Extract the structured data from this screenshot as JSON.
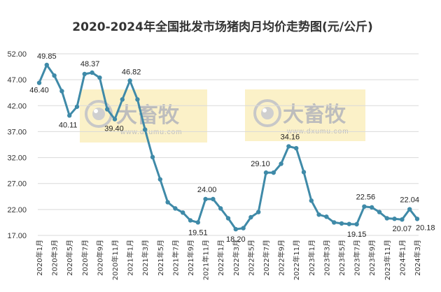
{
  "chart_data": {
    "type": "line",
    "title": "2020-2024年全国批发市场猪肉月均价走势图(元/公斤)",
    "xlabel": "",
    "ylabel": "",
    "ylim": [
      17,
      52
    ],
    "yticks": [
      "52.00",
      "47.00",
      "42.00",
      "37.00",
      "32.00",
      "27.00",
      "22.00",
      "17.00"
    ],
    "grid": true,
    "legend": "none",
    "colors": {
      "line": "#3f8aa8",
      "marker": "#3f8aa8",
      "grid": "#d9d9d9",
      "watermark_bg": "#fbf1c8"
    },
    "x_tick_labels": [
      "2020年1月",
      "2020年3月",
      "2020年5月",
      "2020年7月",
      "2020年9月",
      "2020年11月",
      "2021年1月",
      "2021年3月",
      "2021年5月",
      "2021年7月",
      "2021年9月",
      "2021年11月",
      "2022年1月",
      "2022年3月",
      "2022年5月",
      "2022年7月",
      "2022年9月",
      "2022年11月",
      "2023年1月",
      "2023年3月",
      "2023年5月",
      "2023年7月",
      "2023年9月",
      "2023年11月",
      "2024年1月",
      "2024年3月"
    ],
    "series": [
      {
        "values": [
          46.4,
          49.85,
          47.8,
          44.8,
          40.11,
          41.8,
          48.1,
          48.37,
          47.4,
          41.3,
          39.4,
          43.2,
          46.82,
          43.2,
          37.4,
          32.1,
          27.8,
          23.4,
          22.2,
          21.4,
          19.9,
          19.51,
          24.0,
          24.0,
          22.2,
          20.3,
          18.2,
          18.4,
          20.5,
          21.5,
          29.1,
          29.1,
          30.8,
          34.16,
          33.8,
          29.2,
          23.7,
          21.0,
          20.6,
          19.5,
          19.3,
          19.2,
          19.15,
          22.56,
          22.4,
          21.5,
          20.3,
          20.2,
          20.07,
          22.04,
          20.18
        ]
      }
    ],
    "data_labels": [
      {
        "index": 0,
        "text": "46.40"
      },
      {
        "index": 1,
        "text": "49.85"
      },
      {
        "index": 4,
        "text": "40.11"
      },
      {
        "index": 7,
        "text": "48.37"
      },
      {
        "index": 10,
        "text": "39.40"
      },
      {
        "index": 12,
        "text": "46.82"
      },
      {
        "index": 21,
        "text": "19.51"
      },
      {
        "index": 22,
        "text": "24.00"
      },
      {
        "index": 26,
        "text": "18.20"
      },
      {
        "index": 30,
        "text": "29.10"
      },
      {
        "index": 33,
        "text": "34.16"
      },
      {
        "index": 42,
        "text": "19.15"
      },
      {
        "index": 43,
        "text": "22.56"
      },
      {
        "index": 48,
        "text": "20.07"
      },
      {
        "index": 49,
        "text": "22.04"
      },
      {
        "index": 50,
        "text": "20.18"
      }
    ]
  },
  "watermark": {
    "logo_text": "大畜牧",
    "url_text": "www.dxumu.com",
    "icon": "camera-lens-icon"
  }
}
